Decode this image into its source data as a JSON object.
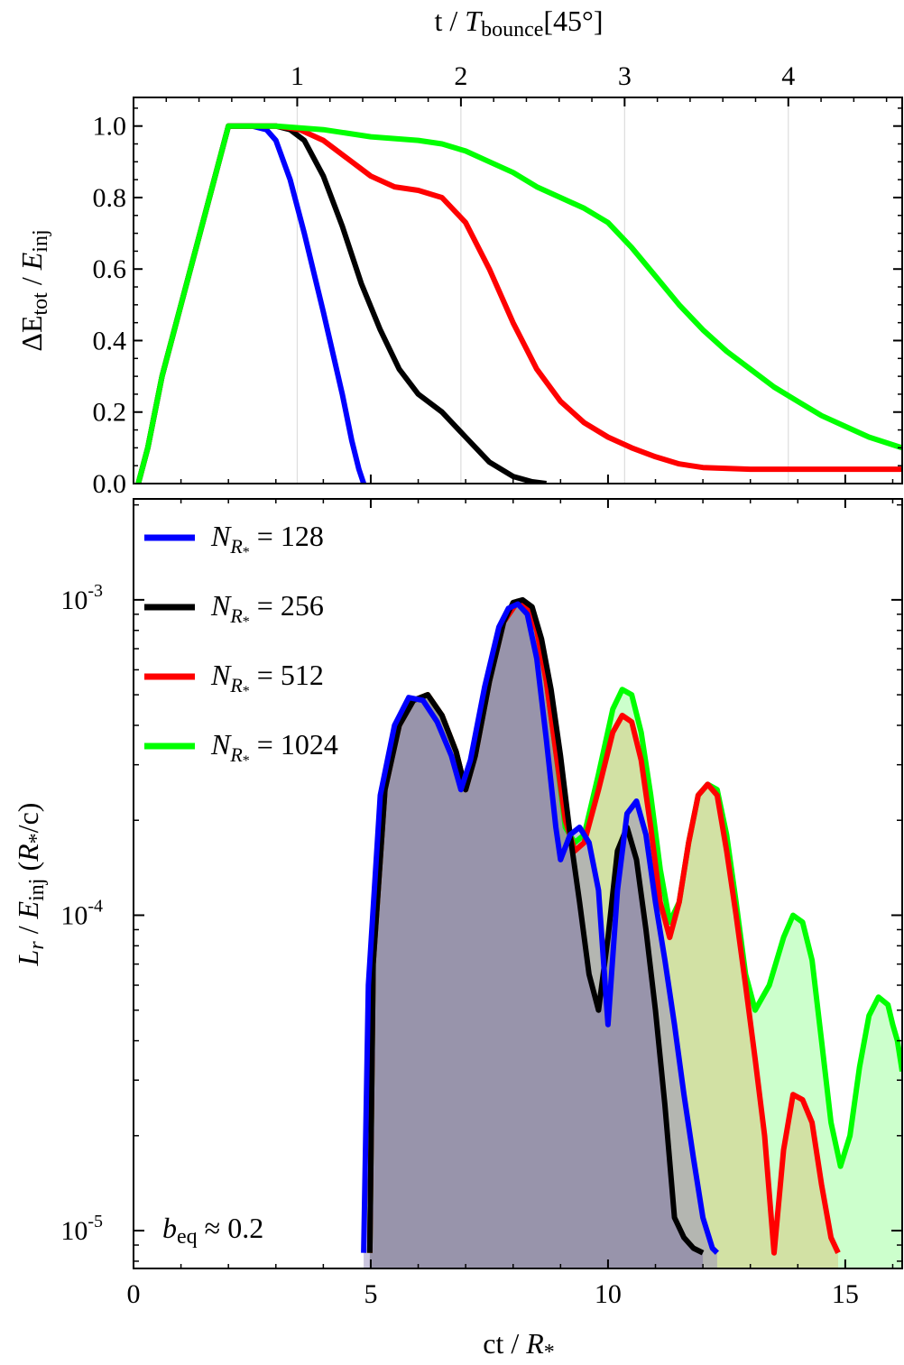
{
  "chart_data": [
    {
      "type": "line",
      "panel": "top",
      "xlabel": "",
      "top_axis_label_main": "t / ",
      "top_axis_label_T": "T",
      "top_axis_label_sub": "bounce",
      "top_axis_label_suffix": "[45°]",
      "ylabel_main": "ΔE",
      "ylabel_sub1": "tot",
      "ylabel_mid": " / ",
      "ylabel_E": "E",
      "ylabel_sub2": "inj",
      "xlim": [
        0,
        16.2
      ],
      "ylim": [
        0,
        1.08
      ],
      "x_ticks": [
        0,
        5,
        10,
        15
      ],
      "y_ticks": [
        "0.0",
        "0.2",
        "0.4",
        "0.6",
        "0.8",
        "1.0"
      ],
      "y_tick_values": [
        0,
        0.2,
        0.4,
        0.6,
        0.8,
        1.0
      ],
      "top_ticks": [
        "1",
        "2",
        "3",
        "4"
      ],
      "top_tick_positions_ct": [
        3.45,
        6.9,
        10.35,
        13.8
      ],
      "gridlines_ct": [
        3.45,
        6.9,
        10.35,
        13.8
      ],
      "series": [
        {
          "name": "N = 128",
          "color": "#0000ff",
          "x": [
            0,
            0.3,
            0.6,
            1.0,
            1.5,
            2.0,
            2.5,
            2.8,
            3.0,
            3.3,
            3.6,
            4.0,
            4.4,
            4.6,
            4.75,
            4.85
          ],
          "y": [
            -0.05,
            0.1,
            0.3,
            0.5,
            0.75,
            1.0,
            1.0,
            0.99,
            0.96,
            0.85,
            0.7,
            0.48,
            0.25,
            0.12,
            0.04,
            0.0
          ]
        },
        {
          "name": "N = 256",
          "color": "#000000",
          "x": [
            0,
            0.3,
            0.6,
            1.0,
            1.5,
            2.0,
            2.5,
            3.0,
            3.3,
            3.6,
            4.0,
            4.4,
            4.8,
            5.2,
            5.6,
            6.0,
            6.5,
            7.0,
            7.5,
            8.0,
            8.4,
            8.7
          ],
          "y": [
            -0.05,
            0.1,
            0.3,
            0.5,
            0.75,
            1.0,
            1.0,
            1.0,
            0.99,
            0.96,
            0.86,
            0.72,
            0.56,
            0.43,
            0.32,
            0.25,
            0.2,
            0.13,
            0.06,
            0.02,
            0.005,
            0.0
          ]
        },
        {
          "name": "N = 512",
          "color": "#ff0000",
          "x": [
            0,
            0.3,
            0.6,
            1.0,
            1.5,
            2.0,
            2.5,
            3.0,
            3.5,
            4.0,
            4.5,
            5.0,
            5.5,
            6.0,
            6.5,
            7.0,
            7.5,
            8.0,
            8.5,
            9.0,
            9.5,
            10.0,
            10.5,
            11.0,
            11.5,
            12.0,
            13.0,
            14.0,
            15.0,
            16.2
          ],
          "y": [
            -0.05,
            0.1,
            0.3,
            0.5,
            0.75,
            1.0,
            1.0,
            1.0,
            0.99,
            0.96,
            0.91,
            0.86,
            0.83,
            0.82,
            0.8,
            0.73,
            0.6,
            0.45,
            0.32,
            0.23,
            0.17,
            0.13,
            0.1,
            0.075,
            0.055,
            0.045,
            0.04,
            0.04,
            0.04,
            0.04
          ]
        },
        {
          "name": "N = 1024",
          "color": "#00ff00",
          "x": [
            0,
            0.3,
            0.6,
            1.0,
            1.5,
            2.0,
            2.5,
            3.0,
            4.0,
            5.0,
            6.0,
            6.5,
            7.0,
            7.5,
            8.0,
            8.5,
            9.0,
            9.5,
            10.0,
            10.5,
            11.0,
            11.5,
            12.0,
            12.5,
            13.0,
            13.5,
            14.0,
            14.5,
            15.0,
            15.5,
            16.2
          ],
          "y": [
            -0.05,
            0.1,
            0.3,
            0.5,
            0.75,
            1.0,
            1.0,
            1.0,
            0.99,
            0.97,
            0.96,
            0.95,
            0.93,
            0.9,
            0.87,
            0.83,
            0.8,
            0.77,
            0.73,
            0.66,
            0.58,
            0.5,
            0.43,
            0.37,
            0.32,
            0.27,
            0.23,
            0.19,
            0.16,
            0.13,
            0.1
          ]
        }
      ]
    },
    {
      "type": "area",
      "panel": "bottom",
      "scale_y": "log",
      "xlabel_main": "ct / ",
      "xlabel_R": "R",
      "xlabel_sub": "*",
      "ylabel_L": "L",
      "ylabel_sub_r": "r",
      "ylabel_mid": " / ",
      "ylabel_E": "E",
      "ylabel_sub_inj": "inj",
      "ylabel_paren_open": " (",
      "ylabel_R": "R",
      "ylabel_sub_star": "*",
      "ylabel_paren_close": "/c)",
      "xlim": [
        0,
        16.2
      ],
      "ylim_log10": [
        -5.12,
        -2.68
      ],
      "x_ticks": [
        "0",
        "5",
        "10",
        "15"
      ],
      "x_tick_values": [
        0,
        5,
        10,
        15
      ],
      "y_ticks": [
        {
          "base": "10",
          "exp": "-3",
          "value": 0.001
        },
        {
          "base": "10",
          "exp": "-4",
          "value": 0.0001
        },
        {
          "base": "10",
          "exp": "-5",
          "value": 1e-05
        }
      ],
      "legend_position": "top-left",
      "legend": [
        {
          "prefix": "N",
          "sub": "R",
          "subsub": "*",
          "text": " = 128",
          "color": "#0000ff"
        },
        {
          "prefix": "N",
          "sub": "R",
          "subsub": "*",
          "text": " = 256",
          "color": "#000000"
        },
        {
          "prefix": "N",
          "sub": "R",
          "subsub": "*",
          "text": " = 512",
          "color": "#ff0000"
        },
        {
          "prefix": "N",
          "sub": "R",
          "subsub": "*",
          "text": " = 1024",
          "color": "#00ff00"
        }
      ],
      "annotation": {
        "b": "b",
        "sub": "eq",
        "text": " ≈ 0.2"
      },
      "series": [
        {
          "name": "N = 1024",
          "line_color": "#00ff00",
          "fill_color": "rgba(0,255,0,0.2)",
          "x": [
            4.98,
            5.05,
            5.3,
            5.6,
            5.9,
            6.2,
            6.5,
            6.8,
            7.0,
            7.2,
            7.5,
            7.8,
            8.1,
            8.3,
            8.5,
            8.7,
            8.9,
            9.1,
            9.3,
            9.5,
            9.8,
            10.1,
            10.3,
            10.5,
            10.7,
            10.9,
            11.1,
            11.3,
            11.5,
            11.7,
            11.9,
            12.1,
            12.3,
            12.5,
            12.7,
            12.9,
            13.1,
            13.4,
            13.7,
            13.9,
            14.1,
            14.3,
            14.5,
            14.7,
            14.9,
            15.1,
            15.3,
            15.5,
            15.7,
            15.9,
            16.0,
            16.1,
            16.2
          ],
          "y": [
            8.5e-06,
            7e-05,
            0.00025,
            0.0004,
            0.00048,
            0.0005,
            0.00043,
            0.00033,
            0.00025,
            0.00032,
            0.00055,
            0.00085,
            0.00099,
            0.00095,
            0.0008,
            0.00055,
            0.00033,
            0.00019,
            0.00017,
            0.00018,
            0.00028,
            0.00045,
            0.00052,
            0.0005,
            0.00038,
            0.00024,
            0.00014,
            9.5e-05,
            0.00011,
            0.00017,
            0.00024,
            0.00026,
            0.00025,
            0.00018,
            0.00011,
            6.5e-05,
            5e-05,
            6e-05,
            8.5e-05,
            0.0001,
            9.5e-05,
            7.2e-05,
            4e-05,
            2.2e-05,
            1.6e-05,
            2e-05,
            3.3e-05,
            4.8e-05,
            5.5e-05,
            5.2e-05,
            4.5e-05,
            4e-05,
            3.2e-05
          ]
        },
        {
          "name": "N = 512",
          "line_color": "#ff0000",
          "fill_color": "rgba(220,170,90,0.35)",
          "x": [
            4.98,
            5.05,
            5.3,
            5.6,
            5.9,
            6.2,
            6.5,
            6.8,
            7.0,
            7.2,
            7.5,
            7.8,
            8.1,
            8.3,
            8.5,
            8.7,
            8.9,
            9.1,
            9.3,
            9.5,
            9.8,
            10.1,
            10.3,
            10.5,
            10.7,
            10.9,
            11.1,
            11.3,
            11.5,
            11.7,
            11.9,
            12.1,
            12.3,
            12.5,
            12.7,
            12.9,
            13.1,
            13.3,
            13.5,
            13.7,
            13.9,
            14.1,
            14.3,
            14.5,
            14.7,
            14.85
          ],
          "y": [
            8.5e-06,
            7e-05,
            0.00025,
            0.0004,
            0.00048,
            0.0005,
            0.00043,
            0.00033,
            0.00025,
            0.00032,
            0.00055,
            0.00085,
            0.00099,
            0.00095,
            0.0008,
            0.00055,
            0.00033,
            0.0002,
            0.00016,
            0.00017,
            0.00025,
            0.00038,
            0.00043,
            0.00041,
            0.00031,
            0.00019,
            0.00011,
            8.5e-05,
            0.00011,
            0.00017,
            0.00024,
            0.00026,
            0.00024,
            0.00016,
            0.0001,
            6e-05,
            3.5e-05,
            2e-05,
            8.5e-06,
            1.8e-05,
            2.7e-05,
            2.6e-05,
            2.2e-05,
            1.4e-05,
            9.5e-06,
            8.5e-06
          ]
        },
        {
          "name": "N = 256",
          "line_color": "#000000",
          "fill_color": "rgba(100,90,140,0.5)",
          "x": [
            4.98,
            5.05,
            5.3,
            5.6,
            5.9,
            6.2,
            6.5,
            6.8,
            7.0,
            7.2,
            7.5,
            7.8,
            8.0,
            8.2,
            8.4,
            8.6,
            8.8,
            9.0,
            9.2,
            9.4,
            9.6,
            9.8,
            10.0,
            10.2,
            10.4,
            10.6,
            10.8,
            11.0,
            11.2,
            11.4,
            11.6,
            11.8,
            12.0
          ],
          "y": [
            8.5e-06,
            7e-05,
            0.00025,
            0.0004,
            0.00048,
            0.0005,
            0.00043,
            0.00033,
            0.00025,
            0.00032,
            0.00055,
            0.00085,
            0.00098,
            0.001,
            0.00095,
            0.00075,
            0.00052,
            0.00032,
            0.00018,
            0.00011,
            6.5e-05,
            5e-05,
            8.5e-05,
            0.00016,
            0.00019,
            0.00015,
            9e-05,
            5e-05,
            2.5e-05,
            1.1e-05,
            9.5e-06,
            8.8e-06,
            8.5e-06
          ]
        },
        {
          "name": "N = 128",
          "line_color": "#0000ff",
          "fill_color": "rgba(150,140,190,0.5)",
          "x": [
            4.85,
            4.95,
            5.2,
            5.5,
            5.8,
            6.1,
            6.4,
            6.7,
            6.9,
            7.1,
            7.4,
            7.7,
            7.9,
            8.1,
            8.3,
            8.5,
            8.7,
            8.9,
            9.0,
            9.2,
            9.4,
            9.6,
            9.8,
            10.0,
            10.2,
            10.4,
            10.6,
            10.8,
            11.0,
            11.2,
            11.4,
            11.6,
            11.8,
            12.0,
            12.2,
            12.3
          ],
          "y": [
            8.5e-06,
            6e-05,
            0.00024,
            0.0004,
            0.00049,
            0.00048,
            0.00041,
            0.00032,
            0.00025,
            0.00031,
            0.00053,
            0.00082,
            0.00094,
            0.00097,
            0.0009,
            0.00065,
            0.00036,
            0.00019,
            0.00015,
            0.00018,
            0.00019,
            0.00017,
            0.00012,
            4.5e-05,
            0.00012,
            0.00021,
            0.00023,
            0.00018,
            0.00011,
            7.2e-05,
            4.5e-05,
            2.7e-05,
            1.7e-05,
            1.1e-05,
            8.8e-06,
            8.5e-06
          ]
        }
      ]
    }
  ]
}
